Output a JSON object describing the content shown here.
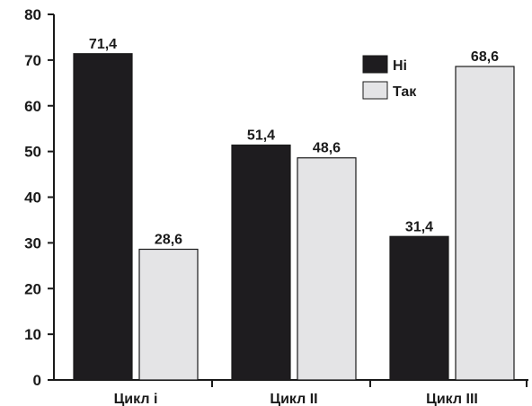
{
  "chart_data": {
    "type": "bar",
    "title": "",
    "xlabel": "",
    "ylabel": "",
    "categories": [
      "Цикл і",
      "Цикл ІІ",
      "Цикл ІІІ"
    ],
    "series": [
      {
        "name": "Ні",
        "values": [
          71.4,
          51.4,
          31.4
        ],
        "value_labels": [
          "71,4",
          "51,4",
          "31,4"
        ],
        "color": "#1e1c1f"
      },
      {
        "name": "Так",
        "values": [
          28.6,
          48.6,
          68.6
        ],
        "value_labels": [
          "28,6",
          "48,6",
          "68,6"
        ],
        "color": "#e4e4e6"
      }
    ],
    "ylim": [
      0,
      80
    ],
    "yticks": [
      0,
      10,
      20,
      30,
      40,
      50,
      60,
      70,
      80
    ],
    "grid": false,
    "legend_position": "top-right"
  }
}
